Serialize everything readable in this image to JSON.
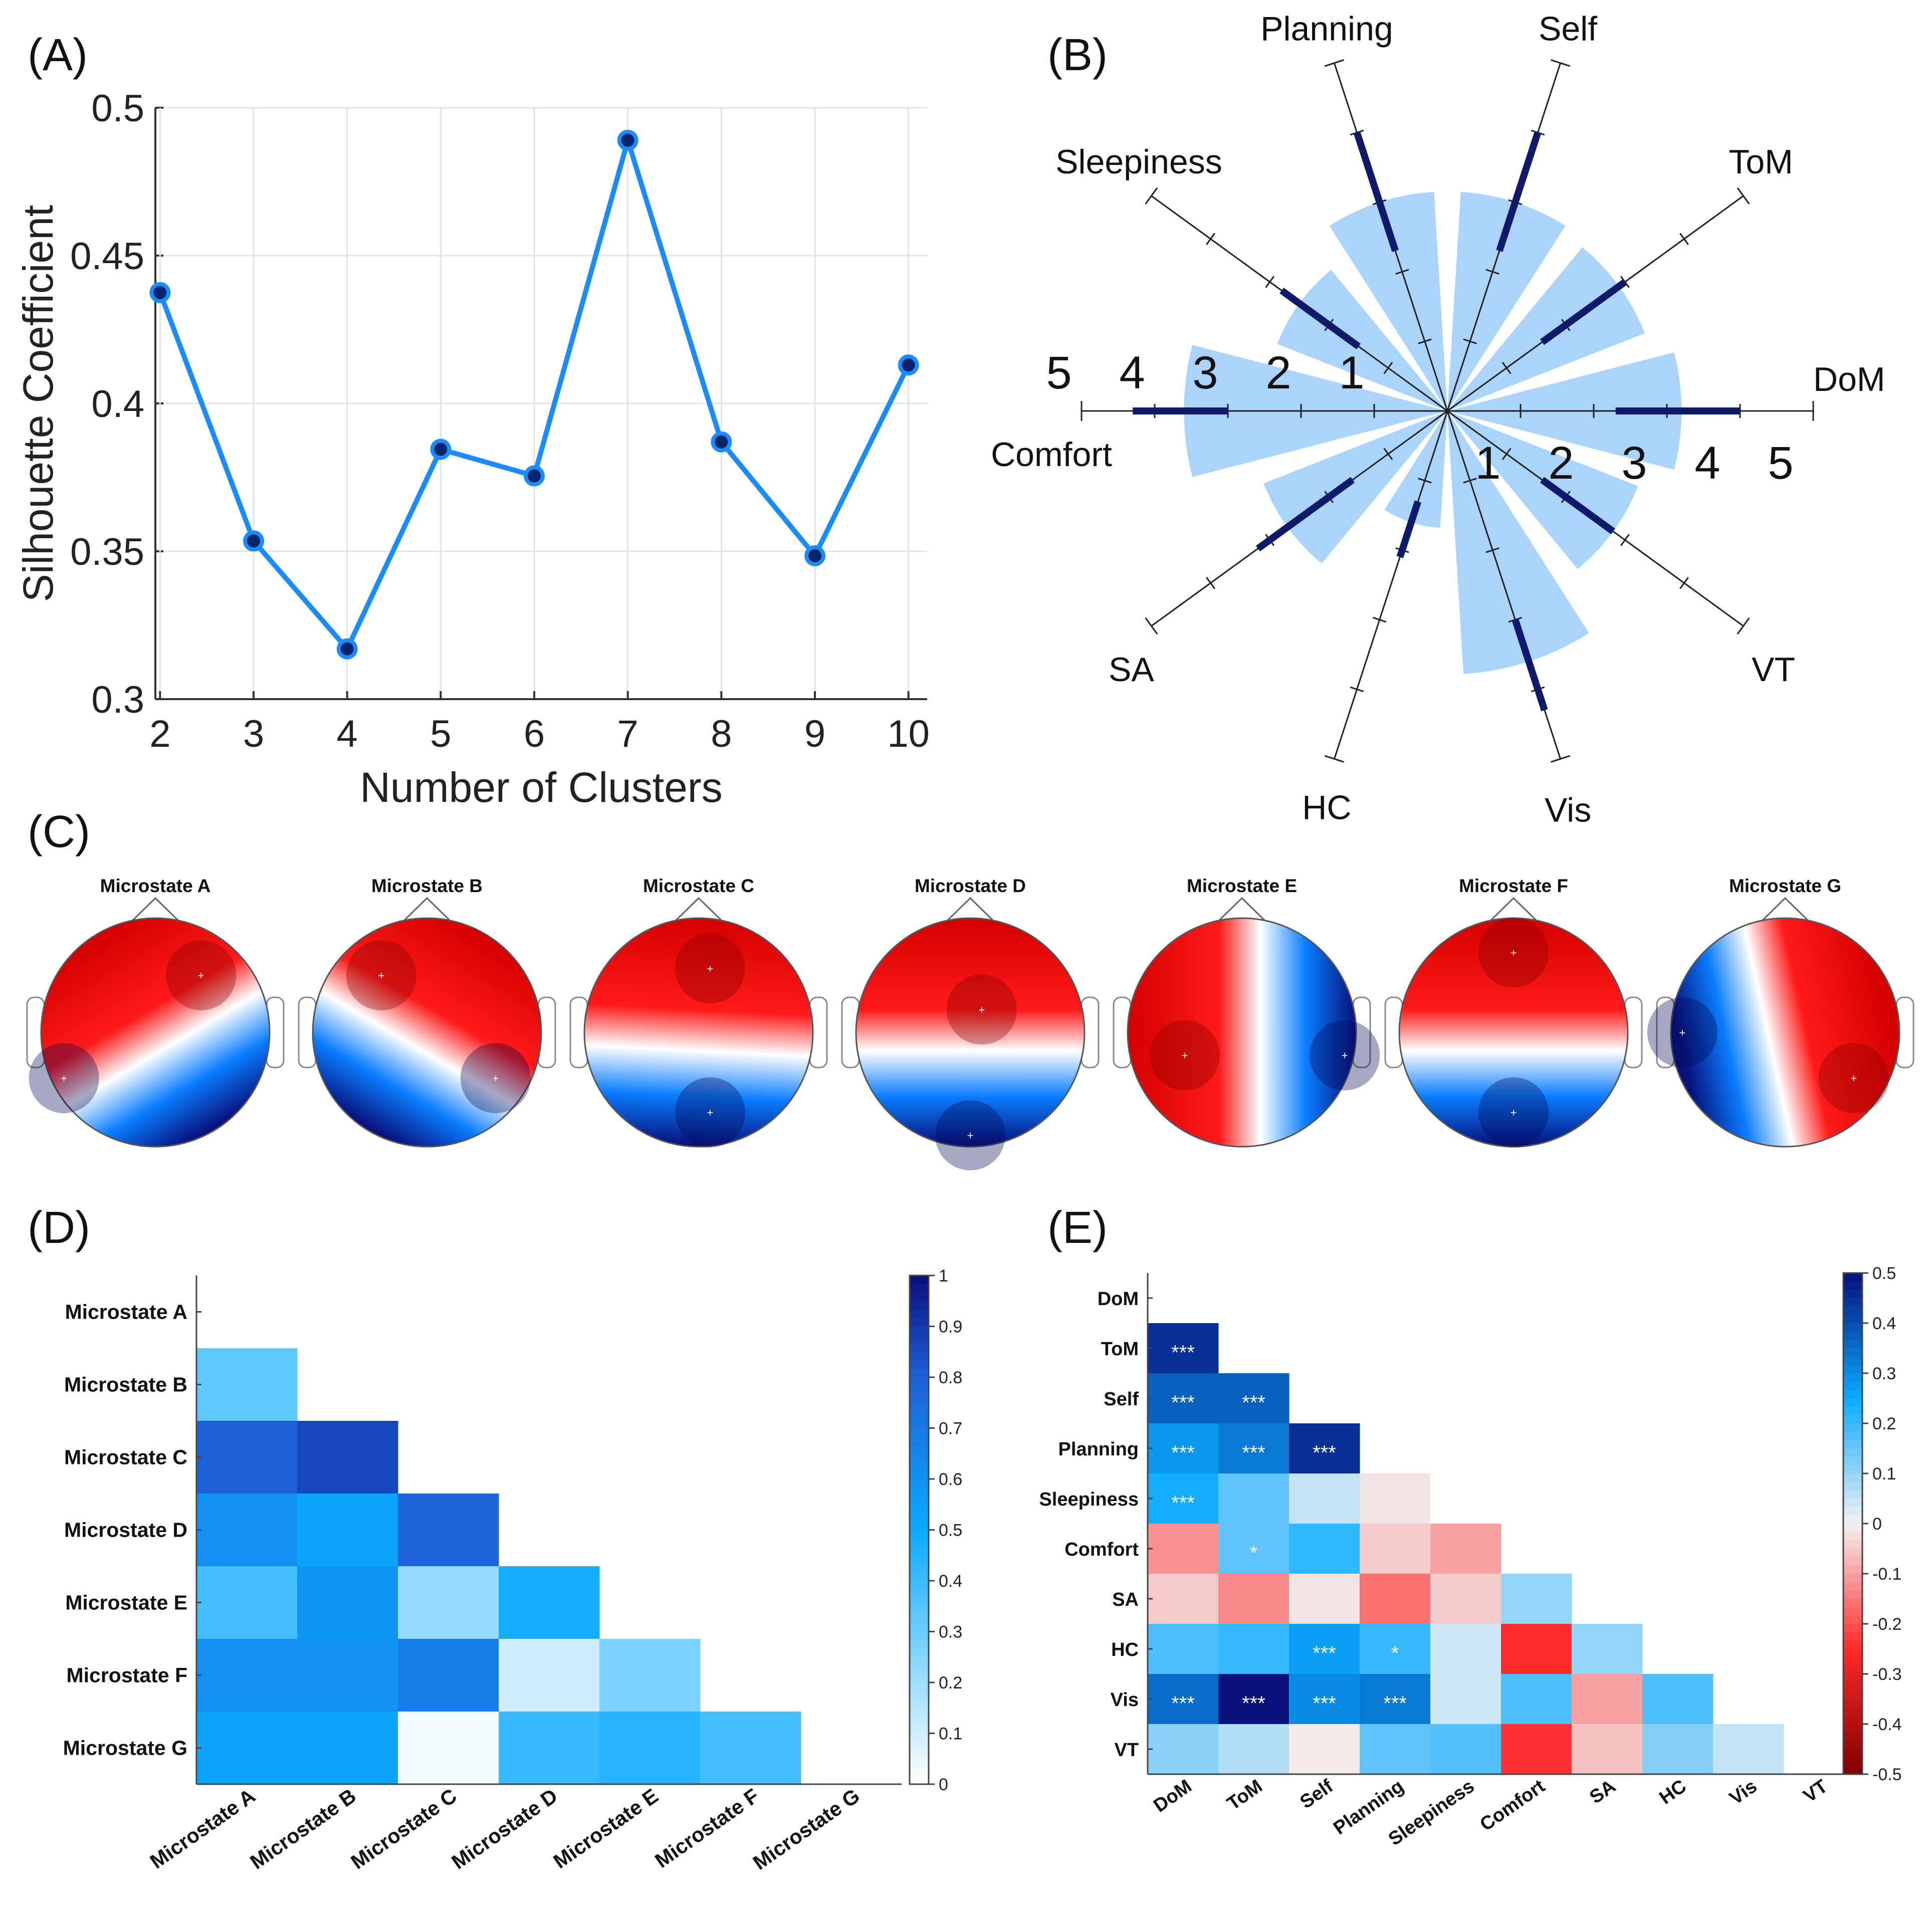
{
  "colors": {
    "line": "#1a8cff",
    "marker_fill": "#08246b",
    "grid": "#e3e3e3",
    "axis": "#333333",
    "rose_fill": "#aad4fb",
    "rose_bar": "#101a6a",
    "spoke": "#222222",
    "neg_dark": "#08107a",
    "neg_mid": "#0a7dff",
    "pos_mid": "#ff1a1a",
    "pos_dark": "#800000"
  },
  "chart_data": [
    {
      "panel": "(A)",
      "type": "line",
      "xlabel": "Number of Clusters",
      "ylabel": "Silhouette Coefficient",
      "x": [
        2,
        3,
        4,
        5,
        6,
        7,
        8,
        9,
        10
      ],
      "values": [
        0.4375,
        0.3535,
        0.317,
        0.3845,
        0.3755,
        0.489,
        0.387,
        0.3485,
        0.413
      ],
      "xlim": [
        1.95,
        10.2
      ],
      "ylim": [
        0.3,
        0.5
      ],
      "xticks": [
        "2",
        "3",
        "4",
        "5",
        "6",
        "7",
        "8",
        "9",
        "10"
      ],
      "yticks": [
        "0.3",
        "0.35",
        "0.4",
        "0.45",
        "0.5"
      ],
      "grid": true
    },
    {
      "panel": "(B)",
      "type": "polar-bar",
      "categories": [
        "DoM",
        "ToM",
        "Self",
        "Planning",
        "Sleepiness",
        "Comfort",
        "SA",
        "HC",
        "Vis",
        "VT"
      ],
      "values": [
        3.2,
        2.9,
        3.0,
        3.0,
        2.5,
        3.6,
        2.7,
        1.6,
        3.6,
        2.8
      ],
      "iqr": [
        [
          2.3,
          4.0
        ],
        [
          1.6,
          3.0
        ],
        [
          2.3,
          4.0
        ],
        [
          2.3,
          4.0
        ],
        [
          1.5,
          2.8
        ],
        [
          3.0,
          4.3
        ],
        [
          1.6,
          3.2
        ],
        [
          1.3,
          2.1
        ],
        [
          3.0,
          4.3
        ],
        [
          1.6,
          2.8
        ]
      ],
      "rlim": [
        0,
        5
      ],
      "rticks": [
        "1",
        "2",
        "3",
        "4",
        "5"
      ]
    },
    {
      "panel": "(C)",
      "type": "topomap",
      "titles": [
        "Microstate A",
        "Microstate B",
        "Microstate C",
        "Microstate D",
        "Microstate E",
        "Microstate F",
        "Microstate G"
      ],
      "maps": [
        {
          "blue": [
            0.1,
            0.3
          ],
          "red": [
            0.7,
            0.75
          ],
          "axis": [
            -0.5,
            0.85
          ]
        },
        {
          "blue": [
            0.8,
            0.3
          ],
          "red": [
            0.3,
            0.75
          ],
          "axis": [
            0.5,
            0.85
          ]
        },
        {
          "blue": [
            0.55,
            0.15
          ],
          "red": [
            0.55,
            0.78
          ],
          "axis": [
            0.05,
            1.0
          ]
        },
        {
          "blue": [
            0.5,
            0.05
          ],
          "red": [
            0.55,
            0.6
          ],
          "axis": [
            0.0,
            1.0
          ],
          "radial": true
        },
        {
          "blue": [
            0.95,
            0.4
          ],
          "red": [
            0.25,
            0.4
          ],
          "axis": [
            -1.0,
            0.0
          ],
          "radial": true
        },
        {
          "blue": [
            0.5,
            0.15
          ],
          "red": [
            0.5,
            0.85
          ],
          "axis": [
            0.0,
            1.0
          ],
          "radial": true
        },
        {
          "blue": [
            0.05,
            0.5
          ],
          "red": [
            0.8,
            0.3
          ],
          "axis": [
            0.9,
            0.2
          ],
          "radial": true
        }
      ]
    },
    {
      "panel": "(D)",
      "type": "heatmap",
      "labels": [
        "Microstate A",
        "Microstate B",
        "Microstate C",
        "Microstate D",
        "Microstate E",
        "Microstate F",
        "Microstate G"
      ],
      "values": [
        [
          0.32
        ],
        [
          0.8,
          0.86
        ],
        [
          0.6,
          0.52,
          0.78
        ],
        [
          0.38,
          0.58,
          0.22,
          0.48
        ],
        [
          0.6,
          0.6,
          0.68,
          0.1,
          0.27
        ],
        [
          0.52,
          0.52,
          0.02,
          0.4,
          0.44,
          0.38
        ]
      ],
      "vlim": [
        0,
        1
      ],
      "cticks": [
        "0",
        "0.1",
        "0.2",
        "0.3",
        "0.4",
        "0.5",
        "0.6",
        "0.7",
        "0.8",
        "0.9",
        "1"
      ]
    },
    {
      "panel": "(E)",
      "type": "heatmap",
      "labels": [
        "DoM",
        "ToM",
        "Self",
        "Planning",
        "Sleepiness",
        "Comfort",
        "SA",
        "HC",
        "Vis",
        "VT"
      ],
      "values": [
        [
          0.45
        ],
        [
          0.37,
          0.37
        ],
        [
          0.28,
          0.33,
          0.45
        ],
        [
          0.24,
          0.16,
          0.05,
          -0.02
        ],
        [
          -0.12,
          0.16,
          0.21,
          -0.05,
          -0.1
        ],
        [
          -0.05,
          -0.13,
          -0.02,
          -0.16,
          -0.05,
          0.1
        ],
        [
          0.18,
          0.2,
          0.27,
          0.2,
          0.04,
          -0.25,
          0.1
        ],
        [
          0.35,
          0.5,
          0.3,
          0.33,
          0.04,
          0.18,
          -0.1,
          0.18
        ],
        [
          0.11,
          0.07,
          -0.01,
          0.16,
          0.17,
          -0.24,
          -0.06,
          0.12,
          0.05
        ]
      ],
      "stars": [
        [
          "***"
        ],
        [
          "***",
          "***"
        ],
        [
          "***",
          "***",
          "***"
        ],
        [
          "***",
          "",
          "",
          ""
        ],
        [
          "",
          "*",
          "",
          "",
          ""
        ],
        [
          "",
          "",
          "",
          "",
          "",
          ""
        ],
        [
          "",
          "",
          "***",
          "*",
          "",
          "",
          ""
        ],
        [
          "***",
          "***",
          "***",
          "***",
          "",
          "",
          "",
          ""
        ],
        [
          "",
          "",
          "",
          "",
          "",
          "",
          "",
          "",
          ""
        ]
      ],
      "vlim": [
        -0.5,
        0.5
      ],
      "cticks": [
        "-0.5",
        "-0.4",
        "-0.3",
        "-0.2",
        "-0.1",
        "0",
        "0.1",
        "0.2",
        "0.3",
        "0.4",
        "0.5"
      ]
    }
  ]
}
